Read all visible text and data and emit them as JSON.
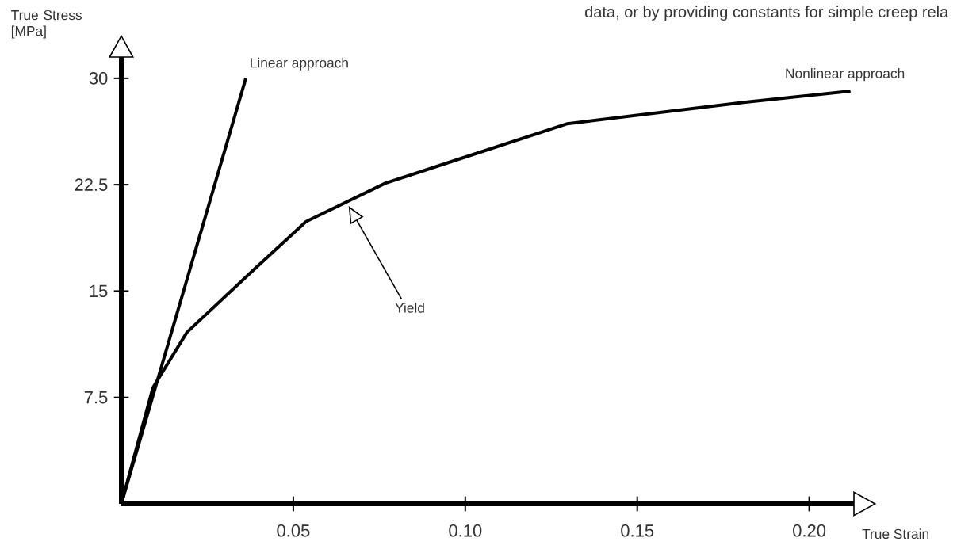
{
  "chart_data": {
    "type": "line",
    "xlabel": "True Strain",
    "ylabel": "True Stress [MPa]",
    "xlim": [
      0,
      0.213
    ],
    "ylim": [
      0,
      31.5
    ],
    "xticks": [
      0.05,
      {
        "value": 0.1,
        "label": "0.10"
      },
      0.15,
      {
        "value": 0.2,
        "label": "0.20"
      }
    ],
    "yticks": [
      7.5,
      15,
      22.5,
      30
    ],
    "series": [
      {
        "name": "Linear approach",
        "color": "#000000",
        "x": [
          0,
          0.0362
        ],
        "values": [
          0,
          30
        ]
      },
      {
        "name": "Nonlinear approach",
        "color": "#000000",
        "x": [
          0,
          0.0092,
          0.0191,
          0.0385,
          0.0537,
          0.0767,
          0.0956,
          0.1297,
          0.1809,
          0.212
        ],
        "values": [
          0,
          8.2,
          12.1,
          16.5,
          19.9,
          22.6,
          24.1,
          26.8,
          28.3,
          29.1
        ]
      }
    ],
    "annotations": [
      "data, or by providing constants for simple creep rela",
      "Yield"
    ]
  }
}
